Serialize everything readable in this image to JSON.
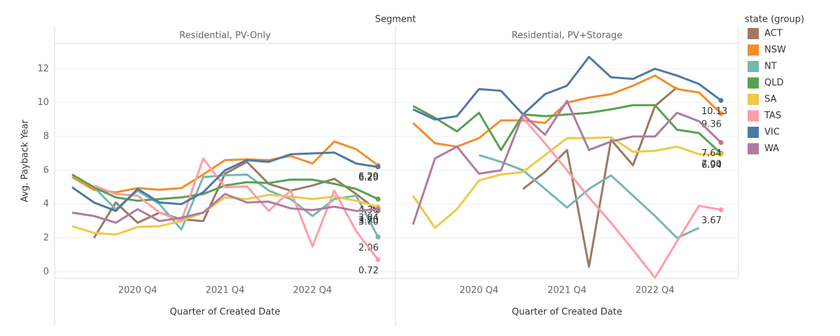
{
  "chart_data": {
    "type": "line",
    "title": "Segment",
    "panels": [
      "Residential, PV-Only",
      "Residential, PV+Storage"
    ],
    "x_label": "Quarter of Created Date",
    "y_label": "Avg. Payback Year",
    "legend_title": "state (group)",
    "categories": [
      null,
      null,
      null,
      "2020 Q4",
      null,
      null,
      null,
      "2021 Q4",
      null,
      null,
      null,
      "2022 Q4",
      null,
      null,
      null
    ],
    "ylim": [
      -0.4,
      13.5
    ],
    "yticks": [
      0,
      2,
      4,
      6,
      8,
      10,
      12
    ],
    "grid": true,
    "series": [
      {
        "name": "ACT",
        "color": "#9c7a62",
        "values": [
          [
            null,
            2.0,
            4.1,
            2.9,
            3.5,
            3.1,
            3.0,
            5.8,
            6.5,
            5.2,
            4.8,
            5.1,
            5.5,
            4.6,
            3.6
          ],
          [
            null,
            null,
            null,
            null,
            null,
            4.9,
            5.9,
            7.2,
            0.3,
            7.8,
            6.3,
            9.8,
            10.9,
            null,
            null
          ]
        ],
        "value_labels": [
          [
            null,
            null,
            null,
            null,
            null,
            null,
            null,
            null,
            null,
            null,
            null,
            null,
            null,
            null,
            "3.60"
          ],
          [
            null,
            null,
            null,
            null,
            null,
            null,
            null,
            null,
            null,
            null,
            null,
            null,
            null,
            null,
            null
          ]
        ]
      },
      {
        "name": "NSW",
        "color": "#f28e2b",
        "values": [
          [
            5.6,
            4.85,
            4.7,
            4.95,
            4.85,
            4.95,
            5.75,
            6.6,
            6.65,
            6.6,
            6.85,
            6.4,
            7.7,
            7.25,
            6.29
          ],
          [
            8.8,
            7.6,
            7.4,
            7.9,
            8.95,
            8.95,
            8.8,
            10.0,
            10.3,
            10.5,
            11.0,
            11.6,
            10.8,
            10.6,
            9.36
          ]
        ],
        "value_labels": [
          [
            null,
            null,
            null,
            null,
            null,
            null,
            null,
            null,
            null,
            null,
            null,
            null,
            null,
            null,
            "6.29"
          ],
          [
            null,
            null,
            null,
            null,
            null,
            null,
            null,
            null,
            null,
            null,
            null,
            null,
            null,
            null,
            "9.36"
          ]
        ]
      },
      {
        "name": "NT",
        "color": "#76b7b2",
        "values": [
          [
            null,
            5.0,
            3.7,
            4.8,
            4.0,
            2.5,
            5.6,
            5.7,
            5.75,
            4.8,
            4.3,
            3.3,
            4.3,
            4.5,
            2.06
          ],
          [
            null,
            null,
            null,
            6.9,
            6.5,
            6.0,
            4.9,
            3.8,
            4.9,
            5.7,
            4.5,
            3.3,
            2.0,
            2.6,
            null
          ]
        ],
        "value_labels": [
          [
            null,
            null,
            null,
            null,
            null,
            null,
            null,
            null,
            null,
            null,
            null,
            null,
            null,
            null,
            "2.06"
          ],
          [
            null,
            null,
            null,
            null,
            null,
            null,
            null,
            null,
            null,
            null,
            null,
            null,
            null,
            null,
            null
          ]
        ]
      },
      {
        "name": "QLD",
        "color": "#59a14f",
        "values": [
          [
            5.75,
            5.0,
            4.4,
            4.2,
            4.3,
            4.4,
            4.6,
            5.1,
            5.3,
            5.25,
            5.45,
            5.45,
            5.2,
            4.9,
            4.3
          ],
          [
            9.8,
            9.1,
            8.3,
            9.4,
            7.2,
            9.3,
            9.2,
            9.3,
            9.4,
            9.6,
            9.85,
            9.85,
            8.4,
            8.2,
            7.0
          ]
        ],
        "value_labels": [
          [
            null,
            null,
            null,
            null,
            null,
            null,
            null,
            null,
            null,
            null,
            null,
            null,
            null,
            null,
            "4.30"
          ],
          [
            null,
            null,
            null,
            null,
            null,
            null,
            null,
            null,
            null,
            null,
            null,
            null,
            null,
            null,
            "7.00"
          ]
        ]
      },
      {
        "name": "SA",
        "color": "#edc948",
        "values": [
          [
            2.7,
            2.3,
            2.2,
            2.65,
            2.7,
            3.0,
            3.5,
            4.4,
            4.3,
            4.55,
            4.45,
            4.3,
            4.45,
            4.2,
            3.84
          ],
          [
            4.5,
            2.6,
            3.7,
            5.4,
            5.75,
            5.9,
            6.9,
            7.9,
            7.9,
            7.95,
            7.1,
            7.15,
            7.4,
            6.95,
            6.94
          ]
        ],
        "value_labels": [
          [
            null,
            null,
            null,
            null,
            null,
            null,
            null,
            null,
            null,
            null,
            null,
            null,
            null,
            null,
            "3.84"
          ],
          [
            null,
            null,
            null,
            null,
            null,
            null,
            null,
            null,
            null,
            null,
            null,
            null,
            null,
            null,
            "6.94"
          ]
        ]
      },
      {
        "name": "TAS",
        "color": "#ff9da7",
        "values": [
          [
            null,
            5.1,
            4.6,
            4.5,
            3.5,
            3.0,
            6.7,
            5.0,
            5.05,
            3.6,
            4.8,
            1.5,
            4.8,
            2.4,
            0.72
          ],
          [
            null,
            null,
            null,
            null,
            null,
            9.1,
            7.6,
            6.0,
            4.4,
            2.9,
            1.3,
            -0.35,
            1.8,
            3.9,
            3.67
          ]
        ],
        "value_labels": [
          [
            null,
            null,
            null,
            null,
            null,
            null,
            null,
            null,
            null,
            null,
            null,
            null,
            null,
            null,
            "0.72"
          ],
          [
            null,
            null,
            null,
            null,
            null,
            null,
            null,
            null,
            null,
            null,
            null,
            null,
            null,
            null,
            "3.67"
          ]
        ]
      },
      {
        "name": "VIC",
        "color": "#4e79a7",
        "values": [
          [
            5.0,
            4.1,
            3.6,
            4.9,
            4.1,
            4.0,
            4.7,
            6.0,
            6.6,
            6.5,
            6.95,
            7.0,
            7.05,
            6.4,
            6.2
          ],
          [
            9.6,
            9.0,
            9.2,
            10.8,
            10.7,
            9.3,
            10.5,
            11.0,
            12.7,
            11.5,
            11.4,
            12.0,
            11.6,
            11.1,
            10.13
          ]
        ],
        "value_labels": [
          [
            null,
            null,
            null,
            null,
            null,
            null,
            null,
            null,
            null,
            null,
            null,
            null,
            null,
            null,
            "6.20"
          ],
          [
            null,
            null,
            null,
            null,
            null,
            null,
            null,
            null,
            null,
            null,
            null,
            null,
            null,
            null,
            "10.13"
          ]
        ]
      },
      {
        "name": "WA",
        "color": "#b07aa1",
        "values": [
          [
            3.5,
            3.3,
            2.9,
            3.7,
            3.0,
            3.2,
            3.5,
            4.6,
            4.1,
            4.15,
            3.75,
            3.65,
            3.85,
            3.6,
            3.7
          ],
          [
            2.8,
            6.7,
            7.4,
            5.8,
            6.0,
            9.3,
            8.1,
            10.1,
            7.2,
            7.7,
            8.0,
            8.0,
            9.4,
            8.9,
            7.64
          ]
        ],
        "value_labels": [
          [
            null,
            null,
            null,
            null,
            null,
            null,
            null,
            null,
            null,
            null,
            null,
            null,
            null,
            null,
            "3.70"
          ],
          [
            null,
            null,
            null,
            null,
            null,
            null,
            null,
            null,
            null,
            null,
            null,
            null,
            null,
            null,
            "7.64"
          ]
        ]
      }
    ]
  }
}
